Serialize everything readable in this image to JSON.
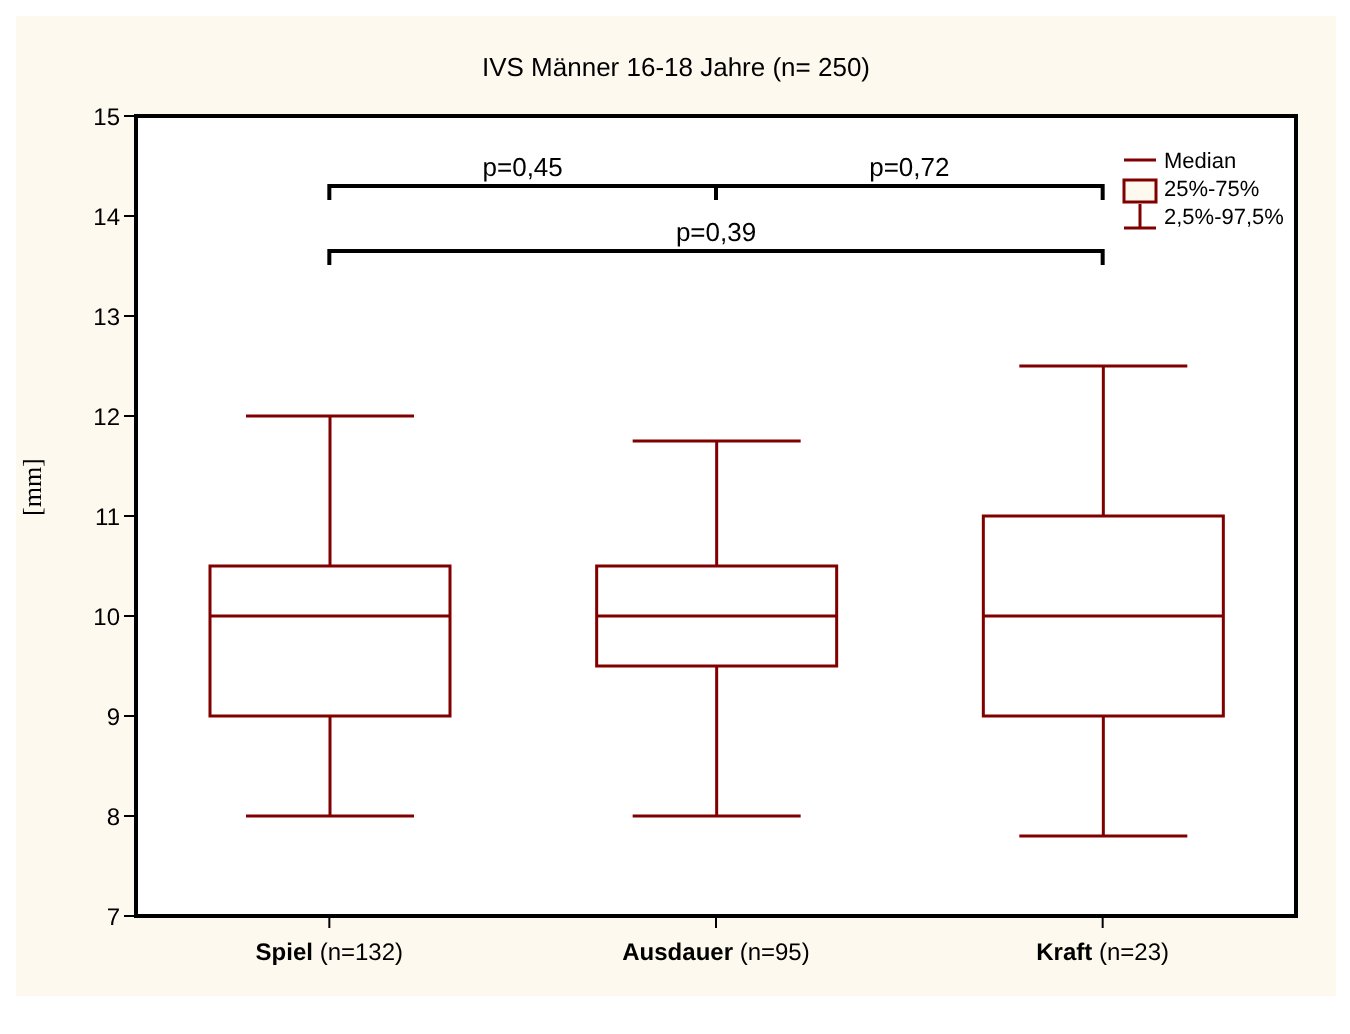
{
  "chart_data": {
    "type": "box",
    "title": "IVS Männer 16-18 Jahre (n= 250)",
    "ylabel": "[mm]",
    "categories": [
      "Spiel (n=132)",
      "Ausdauer (n=95)",
      "Kraft (n=23)"
    ],
    "series": [
      {
        "color": "#800000",
        "boxes": [
          {
            "low": 8,
            "q1": 9,
            "median": 10,
            "q3": 10.5,
            "high": 12
          },
          {
            "low": 8,
            "q1": 9.5,
            "median": 10,
            "q3": 10.5,
            "high": 11.75
          },
          {
            "low": 7.8,
            "q1": 9,
            "median": 10,
            "q3": 11,
            "high": 12.5
          }
        ]
      }
    ],
    "ylim": [
      7,
      15
    ],
    "yticks": [
      7,
      8,
      9,
      10,
      11,
      12,
      13,
      14,
      15
    ],
    "annotations": [
      "p=0,45",
      "p=0,72",
      "p=0,39",
      "Median",
      "25%-75%",
      "2,5%-97,5%"
    ]
  }
}
